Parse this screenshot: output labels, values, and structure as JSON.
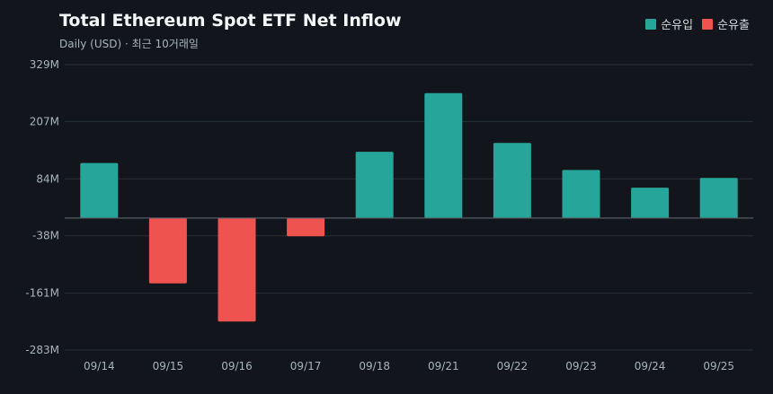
{
  "header": {
    "title": "Total Ethereum Spot ETF Net Inflow",
    "subtitle": "Daily (USD) · 최근 10거래일"
  },
  "legend": {
    "inflow": "순유입",
    "outflow": "순유출"
  },
  "colors": {
    "inflow": "#26a69a",
    "outflow": "#ef5350",
    "grid": "#2a2f37",
    "zero": "#5a626d",
    "tick": "#aab3bd"
  },
  "chart_data": {
    "type": "bar",
    "title": "Total Ethereum Spot ETF Net Inflow",
    "categories": [
      "09/14",
      "09/15",
      "09/16",
      "09/17",
      "09/18",
      "09/21",
      "09/22",
      "09/23",
      "09/24",
      "09/25"
    ],
    "series": [
      {
        "name": "",
        "values": [
          118,
          -140,
          -222,
          -39,
          142,
          268,
          161,
          103,
          65,
          86
        ]
      }
    ],
    "y_ticks": [
      "329M",
      "207M",
      "84M",
      "-38M",
      "-161M",
      "-283M"
    ],
    "y_tick_values": [
      329,
      207,
      84,
      -38,
      -161,
      -283
    ],
    "ylim": [
      -283,
      329
    ],
    "unit": "M",
    "grid": true,
    "legend_position": "top-right"
  }
}
